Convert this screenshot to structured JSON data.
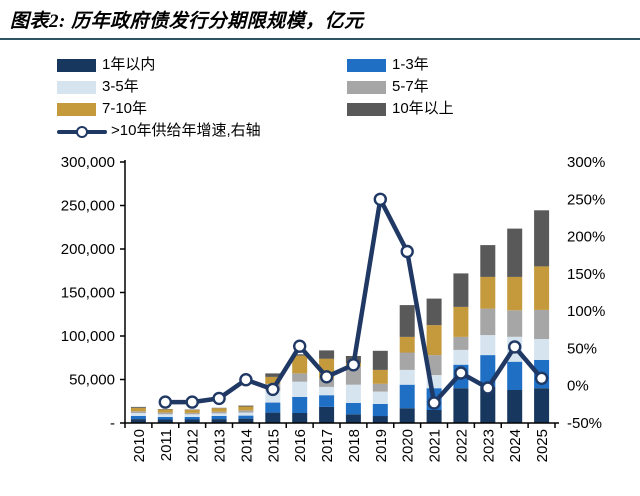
{
  "header": {
    "title": "图表2: 历年政府债发行分期限规模，亿元"
  },
  "legend": {
    "items": [
      {
        "label": "1年以内",
        "color": "#17375e",
        "kind": "box",
        "col": "left"
      },
      {
        "label": "1-3年",
        "color": "#1f6fc5",
        "kind": "box",
        "col": "right"
      },
      {
        "label": "3-5年",
        "color": "#d6e4f0",
        "kind": "box",
        "col": "left"
      },
      {
        "label": "5-7年",
        "color": "#a6a6a6",
        "kind": "box",
        "col": "right"
      },
      {
        "label": "7-10年",
        "color": "#c49a3c",
        "kind": "box",
        "col": "left"
      },
      {
        "label": "10年以上",
        "color": "#595959",
        "kind": "box",
        "col": "right"
      },
      {
        "label": ">10年供给年增速,右轴",
        "color": "#1f3864",
        "kind": "line",
        "col": "left"
      }
    ]
  },
  "chart_data": {
    "type": "bar",
    "subtype": "stacked-bars-with-line-overlay",
    "title": "历年政府债发行分期限规模，亿元",
    "categories": [
      "2010",
      "2011",
      "2012",
      "2013",
      "2014",
      "2015",
      "2016",
      "2017",
      "2018",
      "2019",
      "2020",
      "2021",
      "2022",
      "2023",
      "2024",
      "2025"
    ],
    "series": [
      {
        "name": "1年以内",
        "color": "#17375e",
        "values": [
          4500,
          4000,
          4000,
          4500,
          5000,
          12000,
          11500,
          18500,
          10000,
          8000,
          17000,
          15000,
          40000,
          41500,
          38000,
          40000
        ]
      },
      {
        "name": "1-3年",
        "color": "#1f6fc5",
        "values": [
          3500,
          3000,
          3000,
          3500,
          3500,
          11500,
          18500,
          13500,
          13000,
          14000,
          27000,
          25000,
          27000,
          36500,
          32500,
          32500
        ]
      },
      {
        "name": "3-5年",
        "color": "#d6e4f0",
        "values": [
          3500,
          3000,
          3000,
          3000,
          3500,
          13500,
          17500,
          9500,
          21000,
          14000,
          17000,
          15000,
          17000,
          23000,
          28500,
          24000
        ]
      },
      {
        "name": "5-7年",
        "color": "#a6a6a6",
        "values": [
          2000,
          2000,
          1500,
          2000,
          2500,
          8000,
          9500,
          9500,
          21000,
          9000,
          20000,
          23000,
          15000,
          30500,
          30500,
          33500
        ]
      },
      {
        "name": "7-10年",
        "color": "#c49a3c",
        "values": [
          4000,
          3500,
          3500,
          4000,
          4500,
          8000,
          20500,
          23000,
          4000,
          16000,
          18000,
          34500,
          34500,
          36500,
          38500,
          50000
        ]
      },
      {
        "name": "10年以上",
        "color": "#595959",
        "values": [
          1000,
          500,
          500,
          500,
          1000,
          4000,
          1500,
          9500,
          8000,
          22000,
          36500,
          30500,
          38500,
          36500,
          55500,
          64500
        ]
      }
    ],
    "line_series": {
      "name": ">10年供给年增速,右轴",
      "color": "#1f3864",
      "axis": "right",
      "values": [
        null,
        -22,
        -22,
        -17,
        8,
        -5,
        53,
        12,
        28,
        250,
        180,
        -23,
        17,
        -3,
        52,
        10
      ]
    },
    "left_axis": {
      "min": 0,
      "max": 300000,
      "step": 50000,
      "tick_labels": [
        "-",
        "50,000",
        "100,000",
        "150,000",
        "200,000",
        "250,000",
        "300,000"
      ]
    },
    "right_axis": {
      "min": -50,
      "max": 300,
      "step": 50,
      "tick_labels": [
        "-50%",
        "0%",
        "50%",
        "100%",
        "150%",
        "200%",
        "250%",
        "300%"
      ]
    },
    "grid": false,
    "legend_position": "top"
  }
}
